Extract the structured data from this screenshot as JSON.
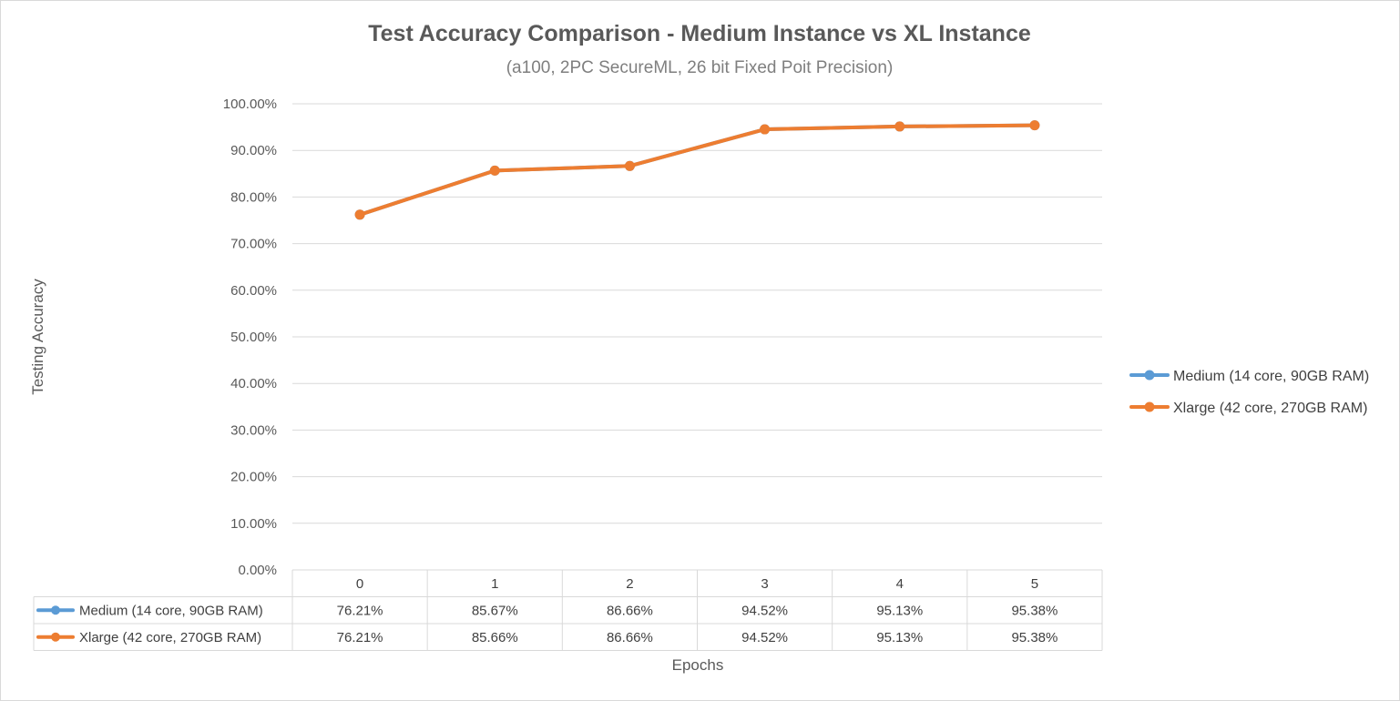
{
  "chart_data": {
    "type": "line",
    "title": "Test Accuracy Comparison - Medium Instance vs XL Instance",
    "subtitle": "(a100, 2PC SecureML, 26 bit Fixed Poit Precision)",
    "xlabel": "Epochs",
    "ylabel": "Testing Accuracy",
    "ylim": [
      0,
      100
    ],
    "y_ticks": [
      "0.00%",
      "10.00%",
      "20.00%",
      "30.00%",
      "40.00%",
      "50.00%",
      "60.00%",
      "70.00%",
      "80.00%",
      "90.00%",
      "100.00%"
    ],
    "categories": [
      "0",
      "1",
      "2",
      "3",
      "4",
      "5"
    ],
    "grid": true,
    "legend_position": "right",
    "series": [
      {
        "name": "Medium (14 core, 90GB RAM)",
        "color": "#5b9bd5",
        "values": [
          76.21,
          85.67,
          86.66,
          94.52,
          95.13,
          95.38
        ],
        "labels": [
          "76.21%",
          "85.67%",
          "86.66%",
          "94.52%",
          "95.13%",
          "95.38%"
        ]
      },
      {
        "name": "Xlarge (42 core, 270GB RAM)",
        "color": "#ed7d31",
        "values": [
          76.21,
          85.66,
          86.66,
          94.52,
          95.13,
          95.38
        ],
        "labels": [
          "76.21%",
          "85.66%",
          "86.66%",
          "94.52%",
          "95.13%",
          "95.38%"
        ]
      }
    ]
  }
}
